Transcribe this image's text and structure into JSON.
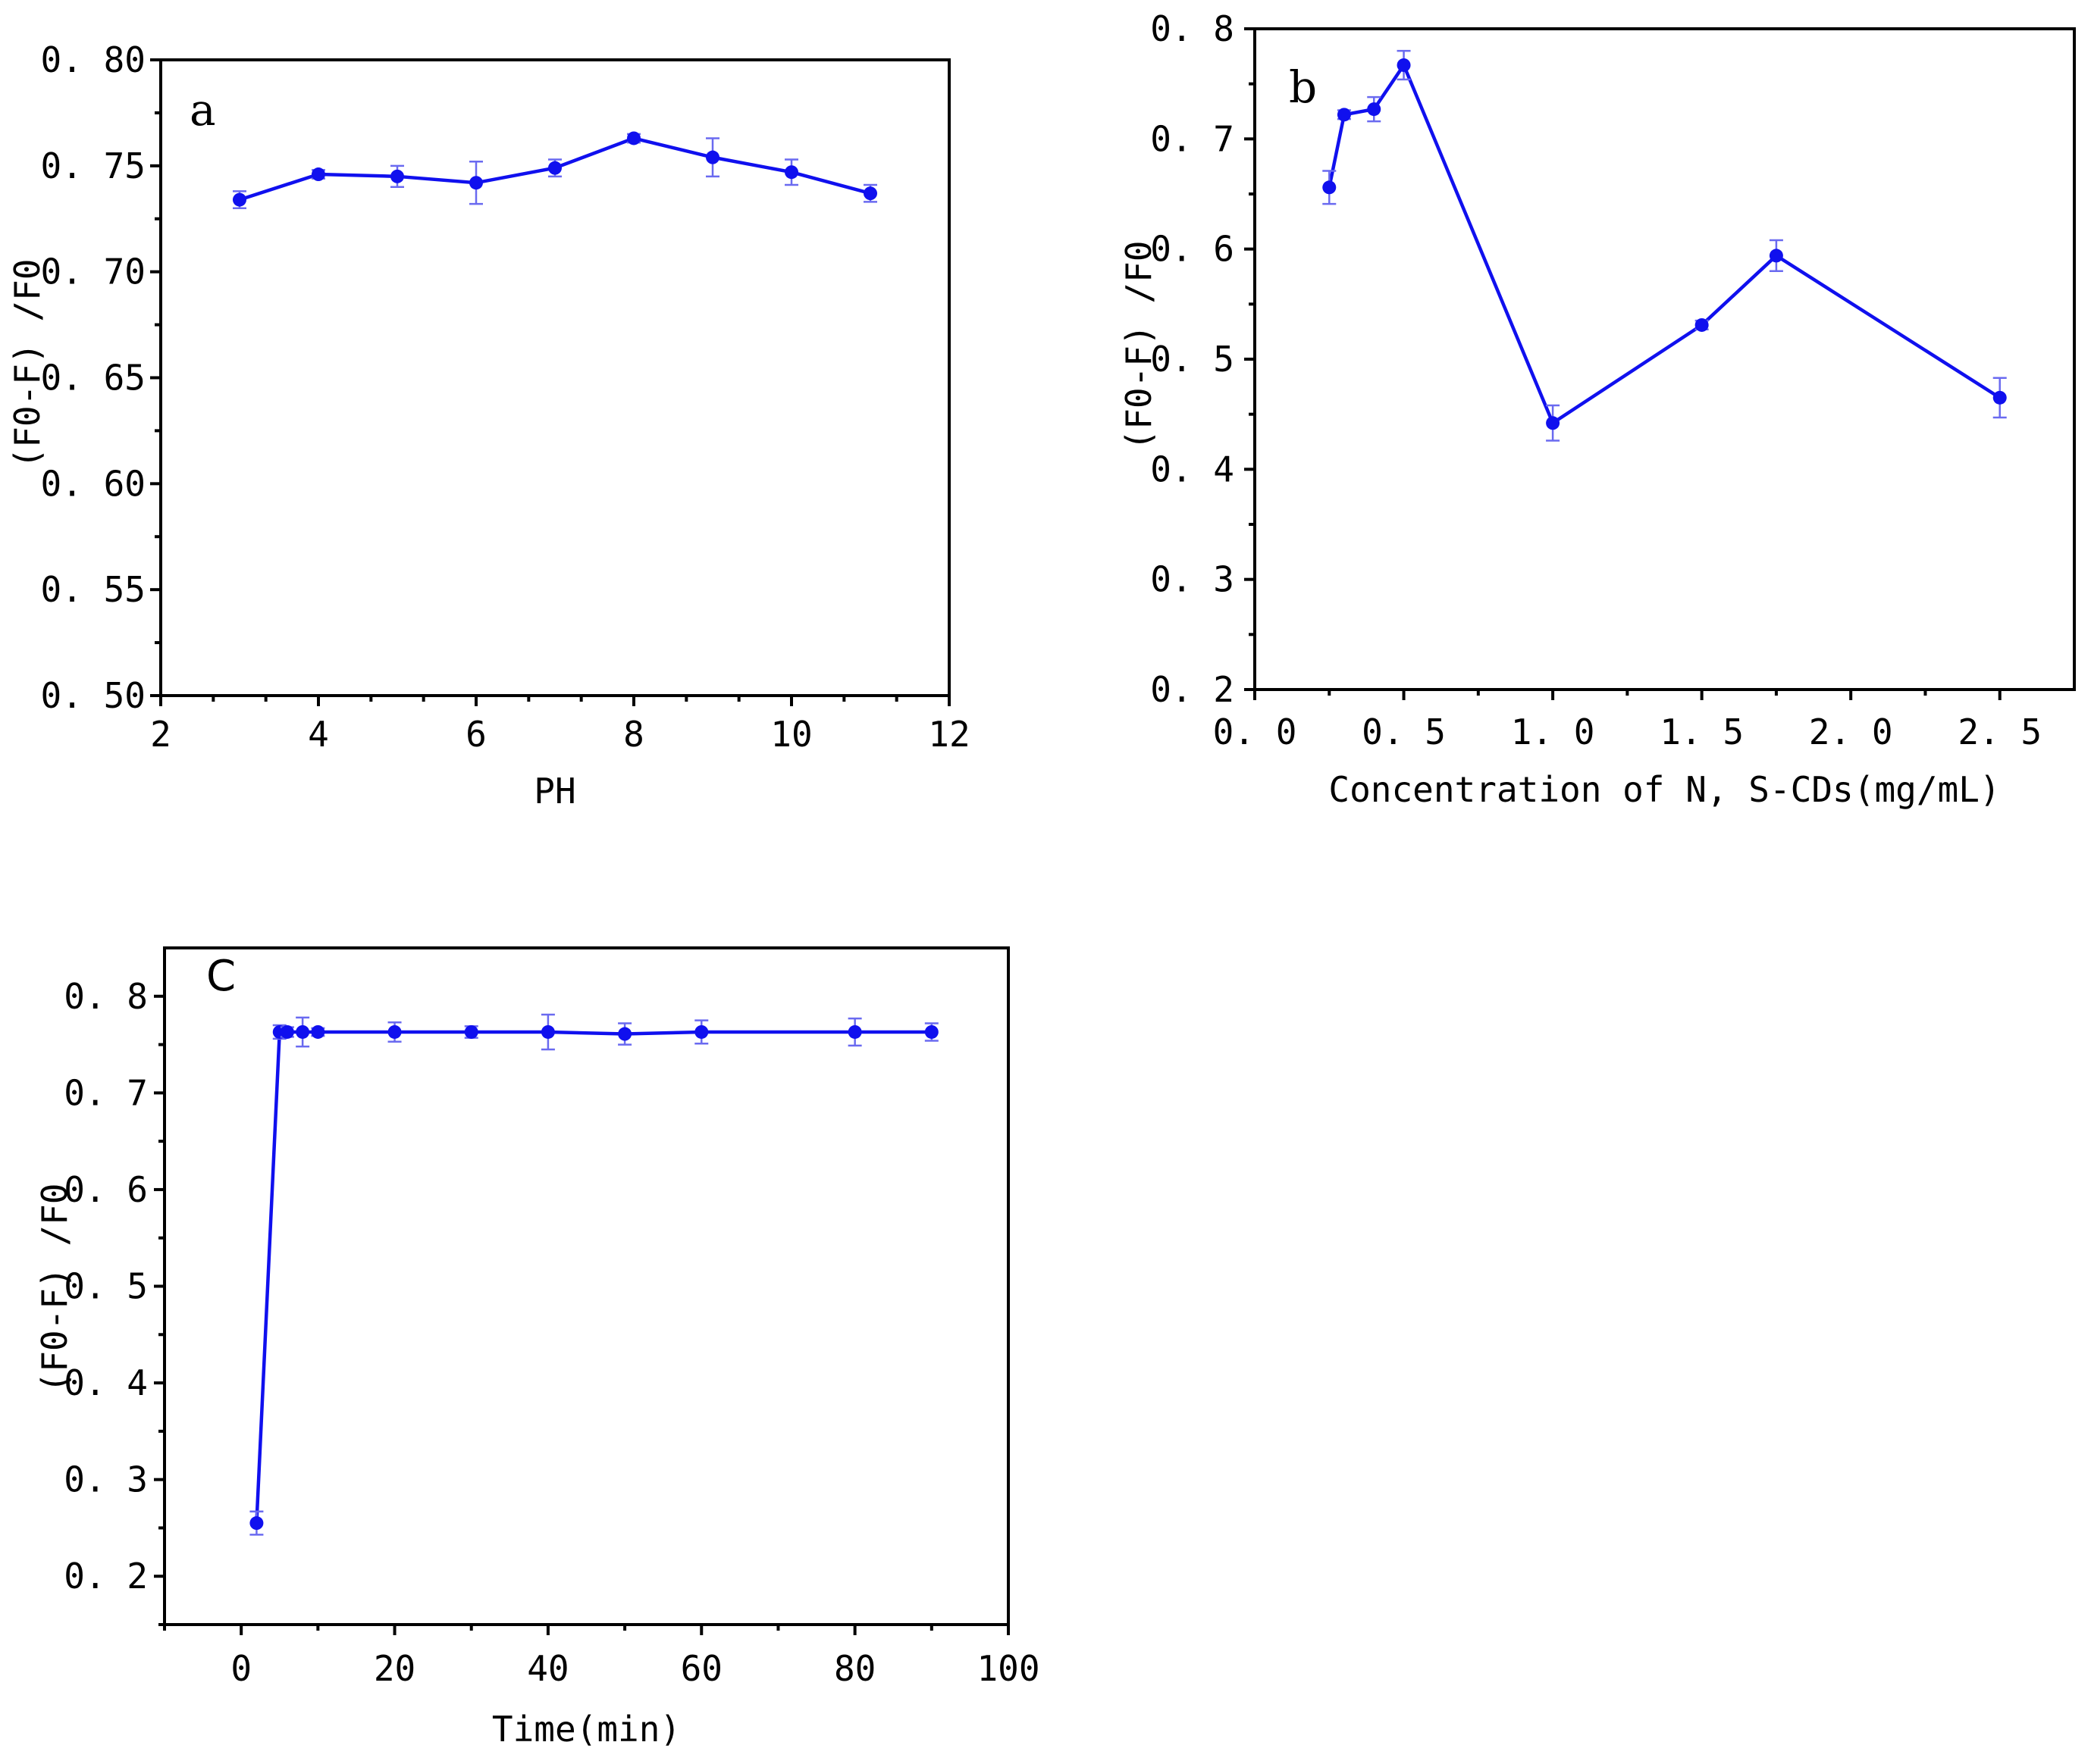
{
  "colors": {
    "series": "#1010ee",
    "errorbar": "#6a6af0",
    "axis": "#000000"
  },
  "chart_data": [
    {
      "type": "line",
      "panel": "a",
      "xlabel": "PH",
      "ylabel": "(F0-F) /F0",
      "xlim": [
        2,
        12
      ],
      "ylim": [
        0.5,
        0.8
      ],
      "xticks": [
        2,
        4,
        6,
        8,
        10,
        12
      ],
      "xtick_labels": [
        "2",
        "4",
        "6",
        "8",
        "10",
        "12"
      ],
      "yticks": [
        0.5,
        0.55,
        0.6,
        0.65,
        0.7,
        0.75,
        0.8
      ],
      "ytick_labels": [
        "0. 50",
        "0. 55",
        "0. 60",
        "0. 65",
        "0. 70",
        "0. 75",
        "0. 80"
      ],
      "series": [
        {
          "name": "a",
          "x": [
            3,
            4,
            5,
            6,
            7,
            8,
            9,
            10,
            11
          ],
          "y": [
            0.734,
            0.746,
            0.745,
            0.742,
            0.749,
            0.763,
            0.754,
            0.747,
            0.737
          ],
          "err": [
            0.004,
            0.002,
            0.005,
            0.01,
            0.004,
            0.002,
            0.009,
            0.006,
            0.004
          ]
        }
      ]
    },
    {
      "type": "line",
      "panel": "b",
      "xlabel": "Concentration of N, S-CDs(mg/mL)",
      "ylabel": "(F0-F) /F0",
      "xlim": [
        0.0,
        2.75
      ],
      "ylim": [
        0.2,
        0.8
      ],
      "xticks": [
        0.0,
        0.5,
        1.0,
        1.5,
        2.0,
        2.5
      ],
      "xtick_labels": [
        "0. 0",
        "0. 5",
        "1. 0",
        "1. 5",
        "2. 0",
        "2. 5"
      ],
      "yticks": [
        0.2,
        0.3,
        0.4,
        0.5,
        0.6,
        0.7,
        0.8
      ],
      "ytick_labels": [
        "0. 2",
        "0. 3",
        "0. 4",
        "0. 5",
        "0. 6",
        "0. 7",
        "0. 8"
      ],
      "series": [
        {
          "name": "b",
          "x": [
            0.25,
            0.3,
            0.4,
            0.5,
            1.0,
            1.5,
            1.75,
            2.5
          ],
          "y": [
            0.656,
            0.722,
            0.727,
            0.767,
            0.442,
            0.531,
            0.594,
            0.465
          ],
          "err": [
            0.015,
            0.004,
            0.011,
            0.013,
            0.016,
            0.004,
            0.014,
            0.018
          ]
        }
      ]
    },
    {
      "type": "line",
      "panel": "C",
      "xlabel": "Time(min)",
      "ylabel": "(F0-F) /F0",
      "xlim": [
        -10,
        100
      ],
      "ylim": [
        0.15,
        0.85
      ],
      "xticks": [
        0,
        20,
        40,
        60,
        80,
        100
      ],
      "xtick_labels": [
        "0",
        "20",
        "40",
        "60",
        "80",
        "100"
      ],
      "yticks": [
        0.2,
        0.3,
        0.4,
        0.5,
        0.6,
        0.7,
        0.8
      ],
      "ytick_labels": [
        "0. 2",
        "0. 3",
        "0. 4",
        "0. 5",
        "0. 6",
        "0. 7",
        "0. 8"
      ],
      "series": [
        {
          "name": "C",
          "x": [
            2,
            5,
            6,
            8,
            10,
            20,
            30,
            40,
            50,
            60,
            80,
            90
          ],
          "y": [
            0.255,
            0.763,
            0.763,
            0.763,
            0.763,
            0.763,
            0.763,
            0.763,
            0.761,
            0.763,
            0.763,
            0.763
          ],
          "err": [
            0.012,
            0.007,
            0.005,
            0.015,
            0.004,
            0.01,
            0.006,
            0.018,
            0.011,
            0.012,
            0.014,
            0.009
          ]
        }
      ]
    }
  ]
}
